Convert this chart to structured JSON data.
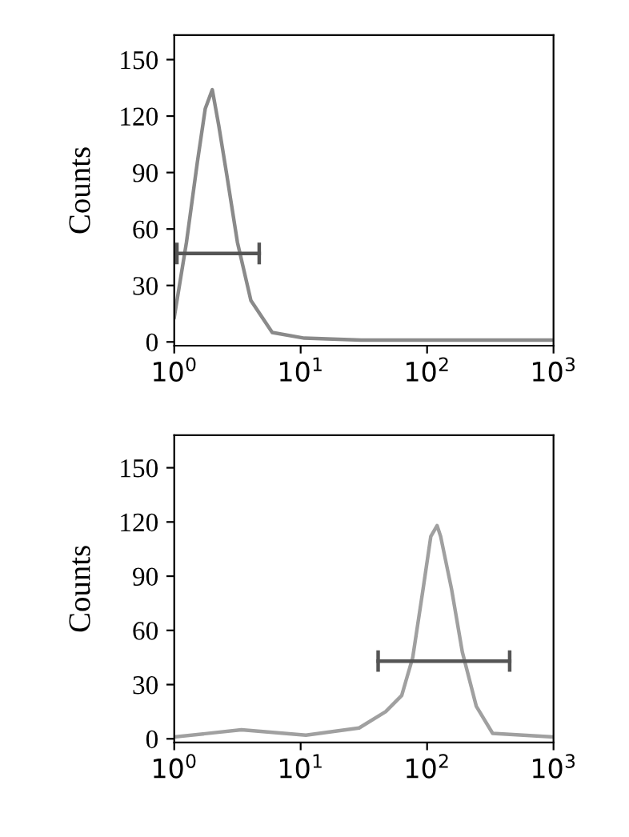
{
  "chart_data": [
    {
      "type": "line",
      "ylabel": "Counts",
      "log": "x",
      "xlim": [
        1,
        1000
      ],
      "ylim": [
        -2,
        163
      ],
      "xticks": [
        {
          "value": 1,
          "label": "10$^{0}$"
        },
        {
          "value": 10,
          "label": "10$^{1}$"
        },
        {
          "value": 100,
          "label": "10$^{2}$"
        },
        {
          "value": 1000,
          "label": "10$^{3}$"
        }
      ],
      "yticks": [
        0,
        30,
        60,
        90,
        120,
        150
      ],
      "grid": false,
      "legend": false,
      "series": [
        {
          "color": "#8a8a8a",
          "x": [
            1,
            1.25,
            1.52,
            1.76,
            2.0,
            2.25,
            2.6,
            3.16,
            4.04,
            5.96,
            10.7,
            30,
            100,
            300,
            1000
          ],
          "values": [
            13,
            53,
            95,
            124,
            134,
            115,
            89,
            53,
            22,
            5,
            2,
            1,
            1,
            1,
            1
          ]
        },
        {
          "color": "#555555",
          "x": [
            1.05,
            4.7
          ],
          "values": [
            47,
            47
          ]
        }
      ]
    },
    {
      "type": "line",
      "ylabel": "Counts",
      "log": "x",
      "xlim": [
        1,
        1000
      ],
      "ylim": [
        -2,
        168
      ],
      "xticks": [
        {
          "value": 1,
          "label": "10$^{0}$"
        },
        {
          "value": 10,
          "label": "10$^{1}$"
        },
        {
          "value": 100,
          "label": "10$^{2}$"
        },
        {
          "value": 1000,
          "label": "10$^{3}$"
        }
      ],
      "yticks": [
        0,
        30,
        60,
        90,
        120,
        150
      ],
      "grid": false,
      "legend": false,
      "series": [
        {
          "color": "#a0a0a0",
          "x": [
            1,
            3.4,
            11,
            29,
            47,
            63,
            77,
            93,
            107,
            120,
            128,
            156,
            190,
            245,
            330,
            1000
          ],
          "values": [
            1,
            5,
            2,
            6,
            15,
            24,
            45,
            83,
            112,
            118,
            112,
            83,
            48,
            18,
            3,
            1
          ]
        },
        {
          "color": "#555555",
          "x": [
            41,
            450
          ],
          "values": [
            43,
            43
          ]
        }
      ]
    }
  ]
}
